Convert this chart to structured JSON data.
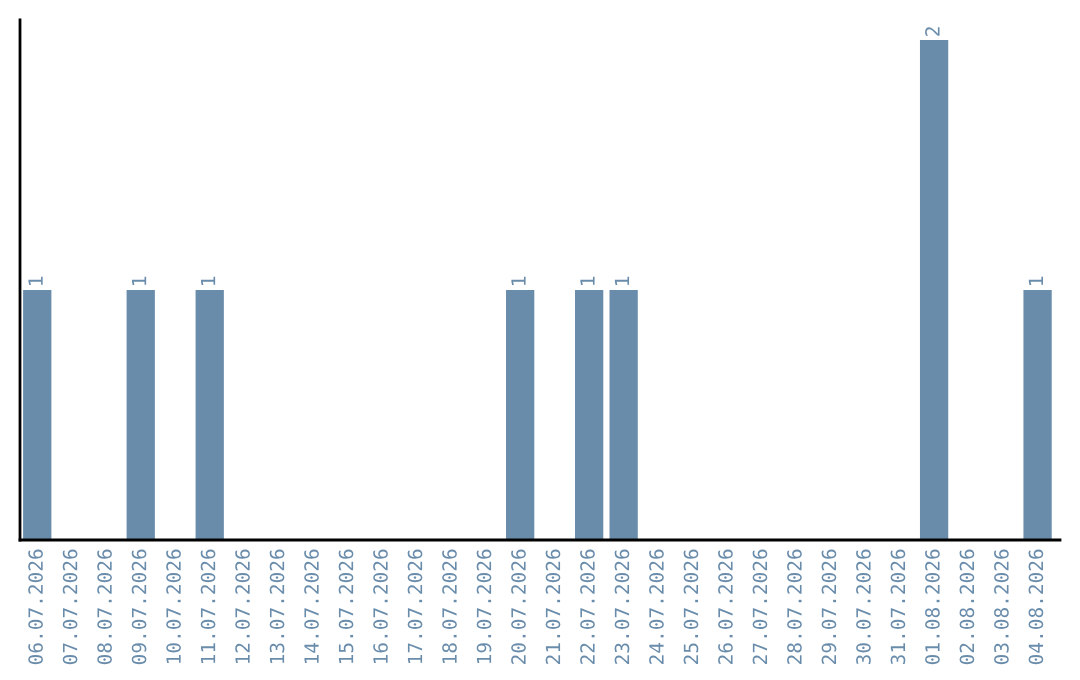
{
  "chart_data": {
    "type": "bar",
    "categories": [
      "06.07.2026",
      "07.07.2026",
      "08.07.2026",
      "09.07.2026",
      "10.07.2026",
      "11.07.2026",
      "12.07.2026",
      "13.07.2026",
      "14.07.2026",
      "15.07.2026",
      "16.07.2026",
      "17.07.2026",
      "18.07.2026",
      "19.07.2026",
      "20.07.2026",
      "21.07.2026",
      "22.07.2026",
      "23.07.2026",
      "24.07.2026",
      "25.07.2026",
      "26.07.2026",
      "27.07.2026",
      "28.07.2026",
      "29.07.2026",
      "30.07.2026",
      "31.07.2026",
      "01.08.2026",
      "02.08.2026",
      "03.08.2026",
      "04.08.2026"
    ],
    "values": [
      1,
      0,
      0,
      1,
      0,
      1,
      0,
      0,
      0,
      0,
      0,
      0,
      0,
      0,
      1,
      0,
      1,
      1,
      0,
      0,
      0,
      0,
      0,
      0,
      0,
      0,
      2,
      0,
      0,
      1
    ],
    "value_labels": [
      "1",
      null,
      null,
      "1",
      null,
      "1",
      null,
      null,
      null,
      null,
      null,
      null,
      null,
      null,
      "1",
      null,
      "1",
      "1",
      null,
      null,
      null,
      null,
      null,
      null,
      null,
      null,
      "2",
      null,
      null,
      "1"
    ],
    "color": "#6a8cab",
    "ylim": [
      0,
      2.08
    ],
    "tick_labels": "x"
  }
}
